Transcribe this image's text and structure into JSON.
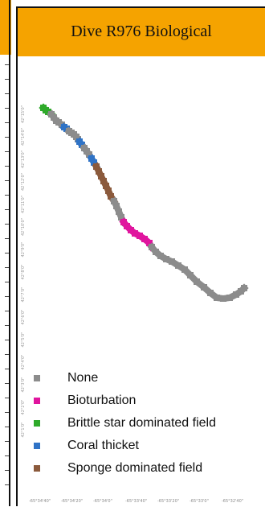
{
  "header": {
    "title": "Dive R976 Biological"
  },
  "legend": {
    "items": [
      {
        "label": "None",
        "color": "#8c8c8c"
      },
      {
        "label": "Bioturbation",
        "color": "#e0159e"
      },
      {
        "label": "Brittle star dominated field",
        "color": "#2eaa2a"
      },
      {
        "label": "Coral thicket",
        "color": "#2f73c6"
      },
      {
        "label": "Sponge dominated field",
        "color": "#8b5a3c"
      }
    ]
  },
  "axes": {
    "latitude_labels": [
      "42°15'0\"",
      "42°14'0\"",
      "42°13'0\"",
      "42°12'0\"",
      "42°11'0\"",
      "42°10'0\"",
      "42°9'0\"",
      "42°8'0\"",
      "42°7'0\"",
      "42°6'0\"",
      "42°5'0\"",
      "42°4'0\"",
      "42°3'0\"",
      "42°2'0\"",
      "42°1'0\""
    ],
    "longitude_labels": [
      "-65°34'40\"",
      "-65°34'20\"",
      "-65°34'0\"",
      "-65°33'40\"",
      "-65°33'20\"",
      "-65°33'0\"",
      "-65°32'40\""
    ]
  },
  "track": {
    "segments": [
      {
        "category": "Brittle star dominated field",
        "points": [
          [
            52,
            134
          ],
          [
            55,
            137
          ],
          [
            58,
            139
          ],
          [
            62,
            142
          ]
        ]
      },
      {
        "category": "None",
        "points": [
          [
            62,
            142
          ],
          [
            65,
            146
          ],
          [
            68,
            150
          ],
          [
            71,
            152
          ],
          [
            75,
            155
          ],
          [
            78,
            158
          ]
        ]
      },
      {
        "category": "Coral thicket",
        "points": [
          [
            78,
            158
          ],
          [
            81,
            160
          ],
          [
            84,
            163
          ]
        ]
      },
      {
        "category": "None",
        "points": [
          [
            84,
            163
          ],
          [
            87,
            165
          ],
          [
            90,
            167
          ],
          [
            93,
            170
          ],
          [
            95,
            173
          ],
          [
            97,
            176
          ]
        ]
      },
      {
        "category": "Coral thicket",
        "points": [
          [
            97,
            176
          ],
          [
            100,
            180
          ],
          [
            103,
            184
          ]
        ]
      },
      {
        "category": "None",
        "points": [
          [
            103,
            184
          ],
          [
            106,
            188
          ],
          [
            109,
            192
          ],
          [
            112,
            197
          ]
        ]
      },
      {
        "category": "Coral thicket",
        "points": [
          [
            112,
            197
          ],
          [
            115,
            202
          ],
          [
            118,
            207
          ]
        ]
      },
      {
        "category": "Sponge dominated field",
        "points": [
          [
            118,
            207
          ],
          [
            121,
            213
          ],
          [
            124,
            219
          ],
          [
            127,
            225
          ],
          [
            130,
            231
          ],
          [
            133,
            237
          ],
          [
            136,
            244
          ],
          [
            140,
            250
          ]
        ]
      },
      {
        "category": "None",
        "points": [
          [
            140,
            250
          ],
          [
            143,
            256
          ],
          [
            146,
            263
          ],
          [
            149,
            270
          ],
          [
            152,
            276
          ]
        ]
      },
      {
        "category": "Bioturbation",
        "points": [
          [
            152,
            276
          ],
          [
            156,
            281
          ],
          [
            161,
            286
          ],
          [
            166,
            290
          ],
          [
            172,
            293
          ],
          [
            178,
            297
          ],
          [
            184,
            302
          ],
          [
            187,
            307
          ]
        ]
      },
      {
        "category": "None",
        "points": [
          [
            187,
            307
          ],
          [
            192,
            313
          ],
          [
            198,
            318
          ],
          [
            205,
            322
          ],
          [
            212,
            325
          ],
          [
            220,
            330
          ],
          [
            228,
            335
          ],
          [
            235,
            342
          ],
          [
            243,
            350
          ],
          [
            252,
            357
          ],
          [
            260,
            364
          ],
          [
            268,
            370
          ],
          [
            276,
            371
          ],
          [
            284,
            370
          ],
          [
            292,
            366
          ],
          [
            298,
            362
          ],
          [
            302,
            358
          ]
        ]
      }
    ]
  }
}
